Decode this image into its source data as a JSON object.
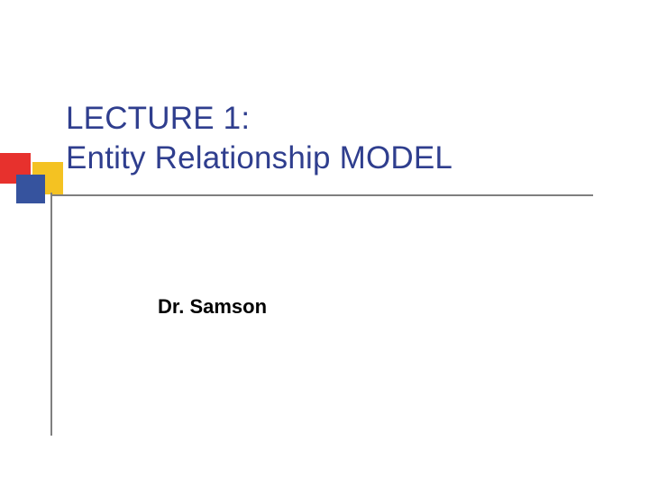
{
  "slide": {
    "title_line1": "LECTURE 1:",
    "title_line2": "Entity Relationship MODEL",
    "author": "Dr. Samson"
  },
  "style": {
    "title_color": "#2f3e8e",
    "title_fontsize": 35,
    "author_color": "#000000",
    "author_fontsize": 22,
    "background_color": "#ffffff",
    "line_color": "#7f7f7f",
    "decoration": {
      "red": "#e7312d",
      "blue": "#36539e",
      "yellow": "#f4c222"
    }
  }
}
